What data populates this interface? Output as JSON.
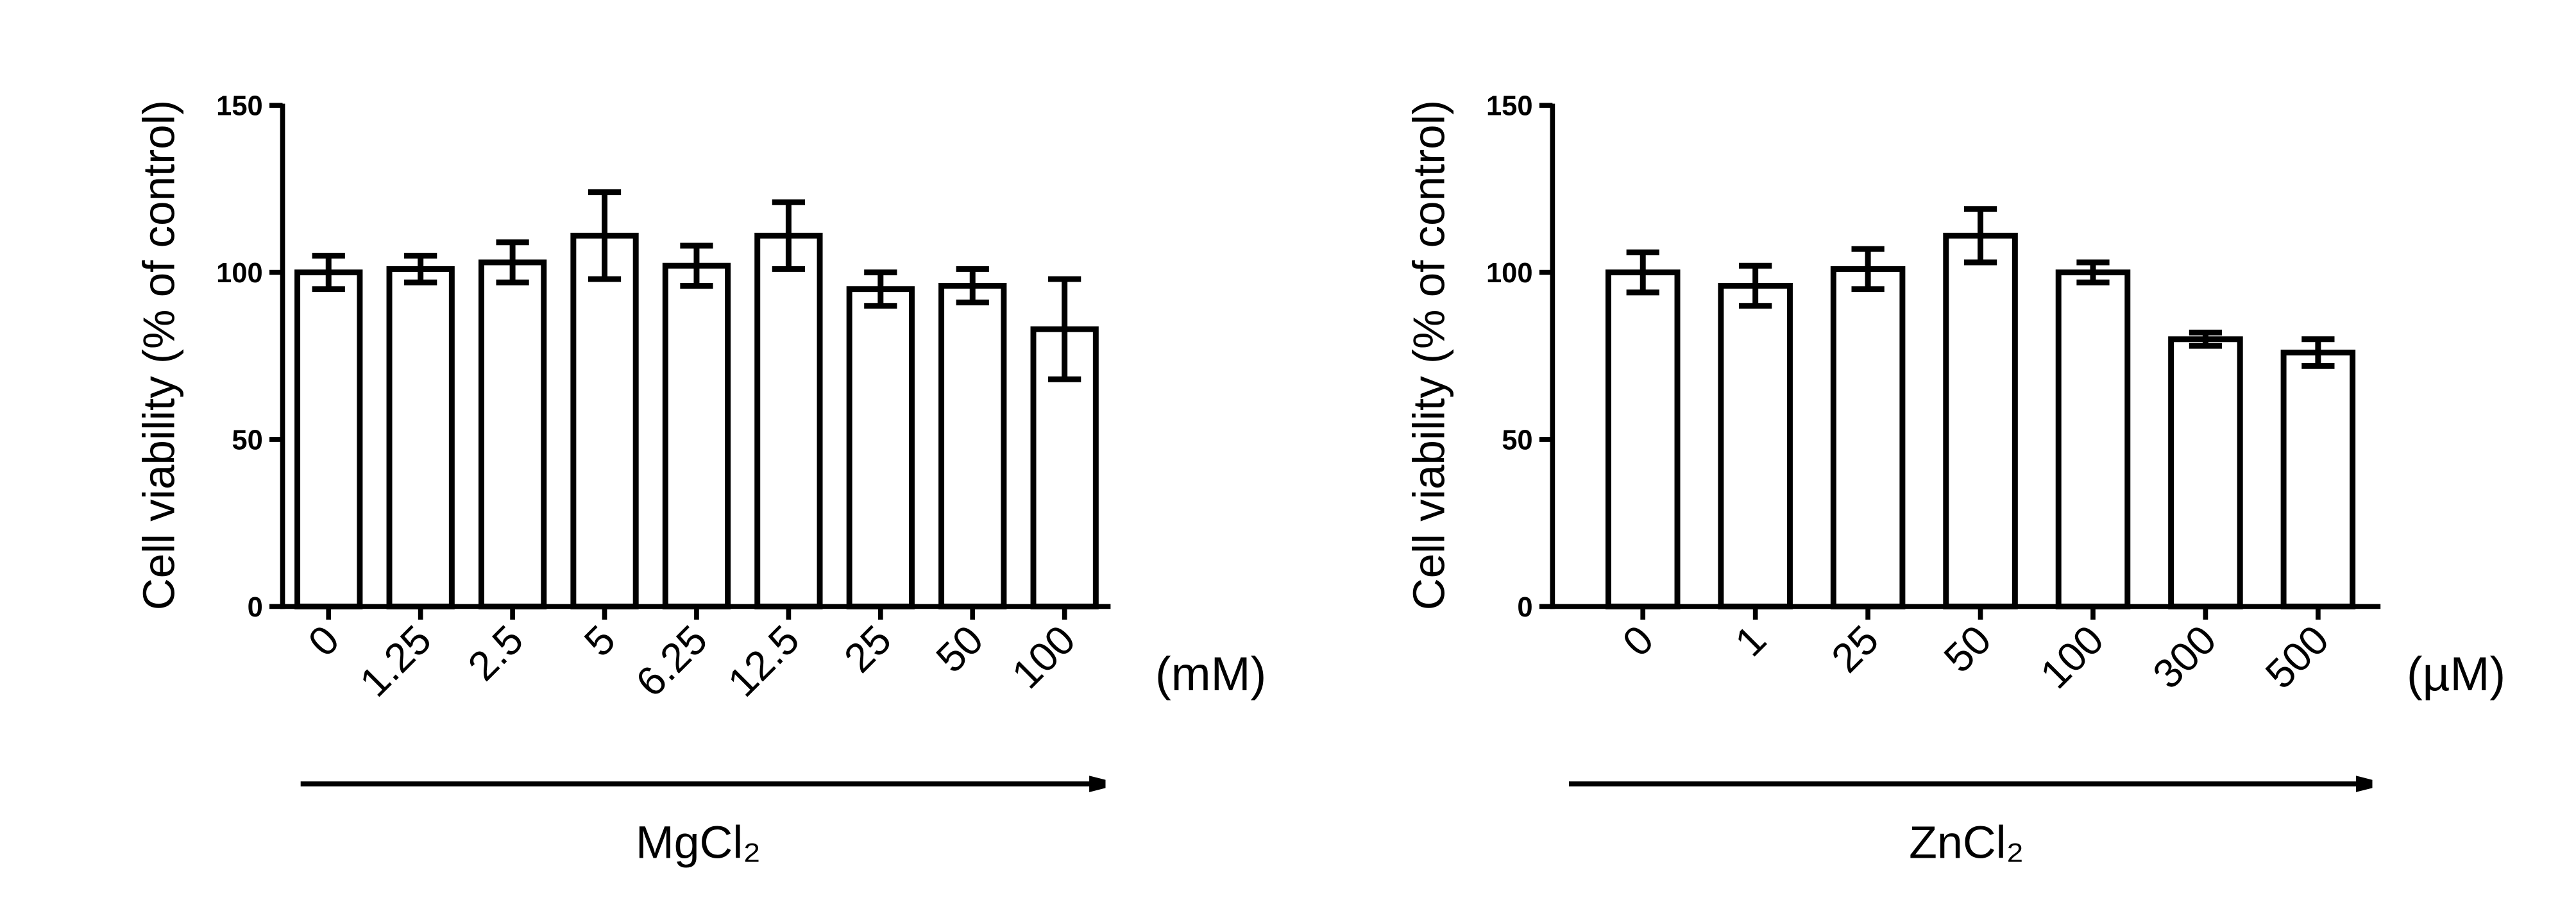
{
  "chart_data": [
    {
      "type": "bar",
      "ylabel": "Cell viability (% of control)",
      "xlabel": "MgCl₂",
      "unit": "(mM)",
      "categories": [
        "0",
        "1.25",
        "2.5",
        "5",
        "6.25",
        "12.5",
        "25",
        "50",
        "100"
      ],
      "values": [
        100,
        101,
        103,
        111,
        102,
        111,
        95,
        96,
        83
      ],
      "errors": [
        5,
        4,
        6,
        13,
        6,
        10,
        5,
        5,
        15
      ],
      "color": "#ffffff",
      "ylim": [
        0,
        150
      ],
      "yticks": [
        0,
        50,
        100,
        150
      ]
    },
    {
      "type": "bar",
      "ylabel": "Cell viability (% of control)",
      "xlabel": "ZnCl₂",
      "unit": "(µM)",
      "categories": [
        "0",
        "1",
        "25",
        "50",
        "100",
        "300",
        "500"
      ],
      "values": [
        100,
        96,
        101,
        111,
        100,
        80,
        76
      ],
      "errors": [
        6,
        6,
        6,
        8,
        3,
        2,
        4
      ],
      "color": "#ffffff",
      "ylim": [
        0,
        150
      ],
      "yticks": [
        0,
        50,
        100,
        150
      ]
    }
  ]
}
